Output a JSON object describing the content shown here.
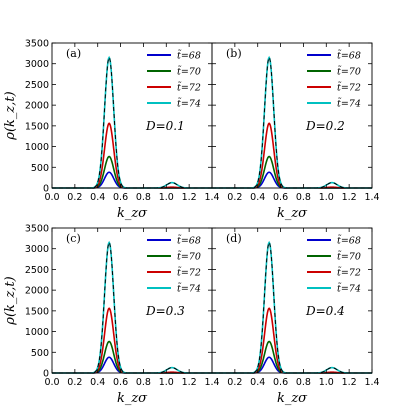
{
  "chart_data": [
    {
      "panel": "(a)",
      "label": "D=0.1",
      "xlabel": "k_zσ",
      "ylabel": "ρ(k_z,t)",
      "xlim": [
        0,
        1.4
      ],
      "ylim": [
        0,
        3500
      ],
      "xticks": [
        "0.0",
        "0.2",
        "0.4",
        "0.6",
        "0.8",
        "1.0",
        "1.2",
        "1.4"
      ],
      "yticks": [
        "0",
        "500",
        "1000",
        "1500",
        "2000",
        "2500",
        "3000",
        "3500"
      ],
      "series": [
        {
          "name": "t̃=68",
          "color": "#0000cc",
          "peak_x": 0.5,
          "peak": 380,
          "second_peak": 0
        },
        {
          "name": "t̃=70",
          "color": "#006400",
          "peak_x": 0.5,
          "peak": 760,
          "second_peak": 0
        },
        {
          "name": "t̃=72",
          "color": "#cc0000",
          "peak_x": 0.5,
          "peak": 1560,
          "second_peak": 20
        },
        {
          "name": "t̃=74",
          "color": "#00c0c0",
          "peak_x": 0.5,
          "peak": 3150,
          "second_peak": 130
        }
      ]
    },
    {
      "panel": "(b)",
      "label": "D=0.2",
      "xlabel": "k_zσ",
      "ylabel": "ρ(k_z,t)",
      "xlim": [
        0,
        1.4
      ],
      "ylim": [
        0,
        3500
      ],
      "xticks": [
        "0.0",
        "0.2",
        "0.4",
        "0.6",
        "0.8",
        "1.0",
        "1.2",
        "1.4"
      ],
      "yticks": [
        "0",
        "500",
        "1000",
        "1500",
        "2000",
        "2500",
        "3000",
        "3500"
      ],
      "series": [
        {
          "name": "t̃=68",
          "color": "#0000cc",
          "peak_x": 0.5,
          "peak": 380,
          "second_peak": 0
        },
        {
          "name": "t̃=70",
          "color": "#006400",
          "peak_x": 0.5,
          "peak": 760,
          "second_peak": 0
        },
        {
          "name": "t̃=72",
          "color": "#cc0000",
          "peak_x": 0.5,
          "peak": 1560,
          "second_peak": 20
        },
        {
          "name": "t̃=74",
          "color": "#00c0c0",
          "peak_x": 0.5,
          "peak": 3150,
          "second_peak": 130
        }
      ]
    },
    {
      "panel": "(c)",
      "label": "D=0.3",
      "xlabel": "k_zσ",
      "ylabel": "ρ(k_z,t)",
      "xlim": [
        0,
        1.4
      ],
      "ylim": [
        0,
        3500
      ],
      "xticks": [
        "0.0",
        "0.2",
        "0.4",
        "0.6",
        "0.8",
        "1.0",
        "1.2",
        "1.4"
      ],
      "yticks": [
        "0",
        "500",
        "1000",
        "1500",
        "2000",
        "2500",
        "3000",
        "3500"
      ],
      "series": [
        {
          "name": "t̃=68",
          "color": "#0000cc",
          "peak_x": 0.5,
          "peak": 380,
          "second_peak": 0
        },
        {
          "name": "t̃=70",
          "color": "#006400",
          "peak_x": 0.5,
          "peak": 760,
          "second_peak": 0
        },
        {
          "name": "t̃=72",
          "color": "#cc0000",
          "peak_x": 0.5,
          "peak": 1560,
          "second_peak": 20
        },
        {
          "name": "t̃=74",
          "color": "#00c0c0",
          "peak_x": 0.5,
          "peak": 3150,
          "second_peak": 130
        }
      ]
    },
    {
      "panel": "(d)",
      "label": "D=0.4",
      "xlabel": "k_zσ",
      "ylabel": "ρ(k_z,t)",
      "xlim": [
        0,
        1.4
      ],
      "ylim": [
        0,
        3500
      ],
      "xticks": [
        "0.0",
        "0.2",
        "0.4",
        "0.6",
        "0.8",
        "1.0",
        "1.2",
        "1.4"
      ],
      "yticks": [
        "0",
        "500",
        "1000",
        "1500",
        "2000",
        "2500",
        "3000",
        "3500"
      ],
      "series": [
        {
          "name": "t̃=68",
          "color": "#0000cc",
          "peak_x": 0.5,
          "peak": 380,
          "second_peak": 0
        },
        {
          "name": "t̃=70",
          "color": "#006400",
          "peak_x": 0.5,
          "peak": 760,
          "second_peak": 0
        },
        {
          "name": "t̃=72",
          "color": "#cc0000",
          "peak_x": 0.5,
          "peak": 1560,
          "second_peak": 20
        },
        {
          "name": "t̃=74",
          "color": "#00c0c0",
          "peak_x": 0.5,
          "peak": 3150,
          "second_peak": 130
        }
      ]
    }
  ],
  "type": "line"
}
